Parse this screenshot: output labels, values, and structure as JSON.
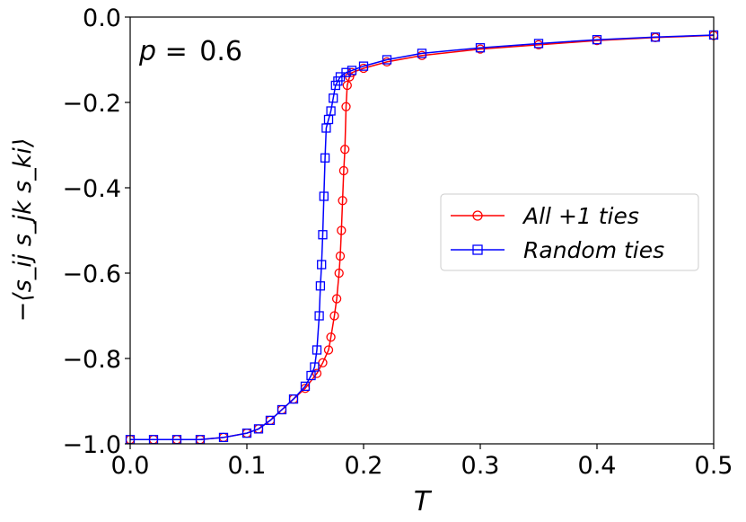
{
  "chart_data": {
    "type": "line",
    "annotation": {
      "label": "p = ",
      "value": "0.6"
    },
    "xlabel": "T",
    "ylabel": "−⟨s_ij s_jk s_ki⟩",
    "xlim": [
      0.0,
      0.5
    ],
    "ylim": [
      -1.0,
      0.0
    ],
    "xticks": [
      0.0,
      0.1,
      0.2,
      0.3,
      0.4,
      0.5
    ],
    "xtick_labels": [
      "0.0",
      "0.1",
      "0.2",
      "0.3",
      "0.4",
      "0.5"
    ],
    "yticks": [
      -1.0,
      -0.8,
      -0.6,
      -0.4,
      -0.2,
      0.0
    ],
    "ytick_labels": [
      "−1.0",
      "−0.8",
      "−0.6",
      "−0.4",
      "−0.2",
      "0.0"
    ],
    "grid": false,
    "legend_position": "center-right",
    "series": [
      {
        "name": "All +1 ties",
        "color": "#ff0000",
        "marker": "circle",
        "x": [
          0.0,
          0.02,
          0.04,
          0.06,
          0.08,
          0.1,
          0.11,
          0.12,
          0.13,
          0.14,
          0.15,
          0.16,
          0.165,
          0.17,
          0.172,
          0.175,
          0.177,
          0.179,
          0.18,
          0.181,
          0.182,
          0.183,
          0.184,
          0.185,
          0.186,
          0.188,
          0.19,
          0.2,
          0.22,
          0.25,
          0.3,
          0.35,
          0.4,
          0.45,
          0.5
        ],
        "y": [
          -0.99,
          -0.99,
          -0.99,
          -0.99,
          -0.985,
          -0.975,
          -0.965,
          -0.945,
          -0.92,
          -0.895,
          -0.87,
          -0.835,
          -0.81,
          -0.78,
          -0.75,
          -0.7,
          -0.66,
          -0.6,
          -0.56,
          -0.5,
          -0.43,
          -0.36,
          -0.31,
          -0.21,
          -0.16,
          -0.14,
          -0.13,
          -0.12,
          -0.105,
          -0.09,
          -0.075,
          -0.065,
          -0.055,
          -0.048,
          -0.043
        ]
      },
      {
        "name": "Random ties",
        "color": "#0000ff",
        "marker": "square",
        "x": [
          0.0,
          0.02,
          0.04,
          0.06,
          0.08,
          0.1,
          0.11,
          0.12,
          0.13,
          0.14,
          0.15,
          0.155,
          0.158,
          0.16,
          0.162,
          0.163,
          0.164,
          0.165,
          0.166,
          0.167,
          0.168,
          0.17,
          0.172,
          0.174,
          0.176,
          0.178,
          0.18,
          0.185,
          0.19,
          0.2,
          0.22,
          0.25,
          0.3,
          0.35,
          0.4,
          0.45,
          0.5
        ],
        "y": [
          -0.99,
          -0.99,
          -0.99,
          -0.99,
          -0.985,
          -0.975,
          -0.965,
          -0.945,
          -0.92,
          -0.895,
          -0.865,
          -0.84,
          -0.82,
          -0.78,
          -0.7,
          -0.63,
          -0.58,
          -0.51,
          -0.42,
          -0.33,
          -0.26,
          -0.24,
          -0.22,
          -0.19,
          -0.16,
          -0.15,
          -0.14,
          -0.13,
          -0.125,
          -0.115,
          -0.1,
          -0.085,
          -0.072,
          -0.062,
          -0.053,
          -0.047,
          -0.042
        ]
      }
    ]
  }
}
